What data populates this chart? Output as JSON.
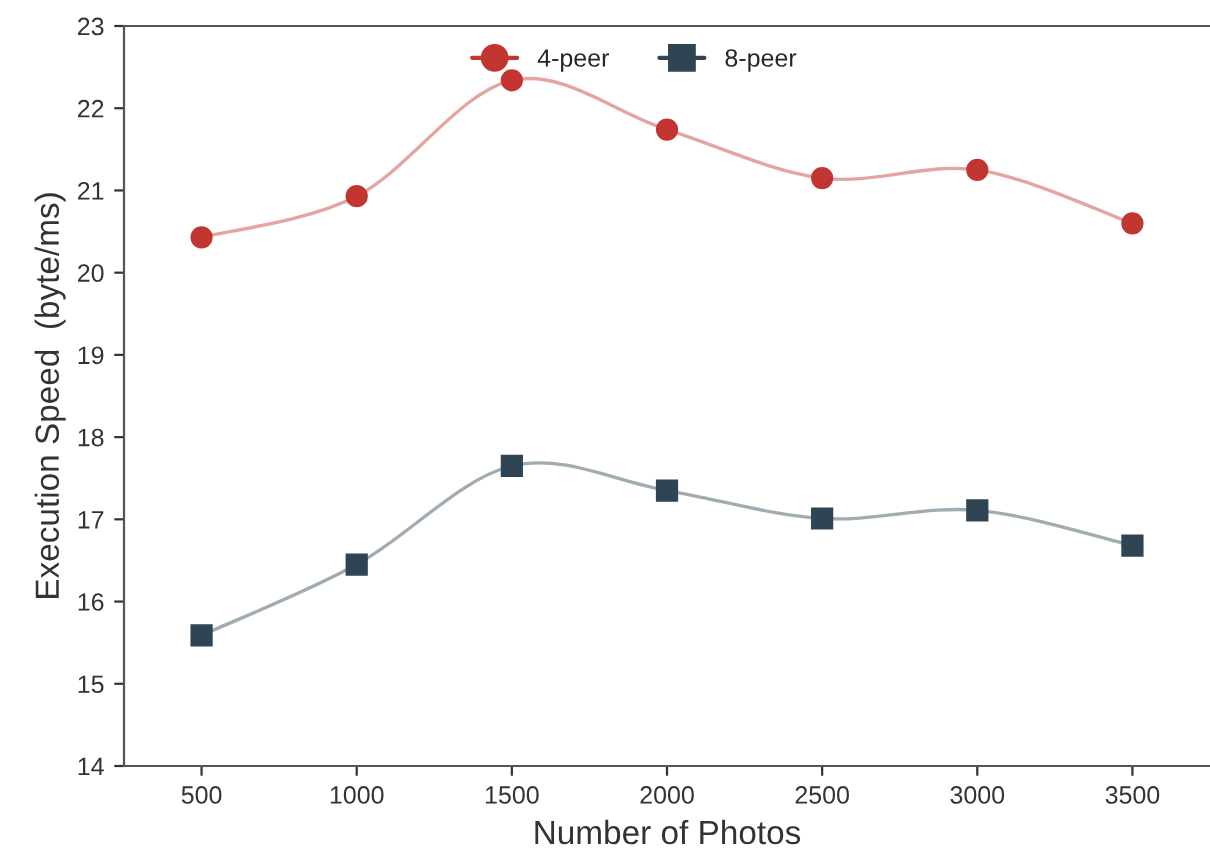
{
  "chart_data": {
    "type": "line",
    "xlabel": "Number of Photos",
    "ylabel": "Execution Speed  (byte/ms)",
    "categories": [
      "500",
      "1000",
      "1500",
      "2000",
      "2500",
      "3000",
      "3500"
    ],
    "series": [
      {
        "name": "4-peer",
        "color": "#c23531",
        "marker": "circle",
        "values": [
          20.43,
          20.93,
          22.34,
          21.74,
          21.15,
          21.25,
          20.6
        ]
      },
      {
        "name": "8-peer",
        "color": "#2f4554",
        "marker": "square",
        "values": [
          15.59,
          16.45,
          17.65,
          17.35,
          17.01,
          17.11,
          16.68
        ]
      }
    ],
    "ylim": [
      14,
      23
    ],
    "yticks": [
      14,
      15,
      16,
      17,
      18,
      19,
      20,
      21,
      22,
      23
    ],
    "legend": "top",
    "grid": false
  }
}
